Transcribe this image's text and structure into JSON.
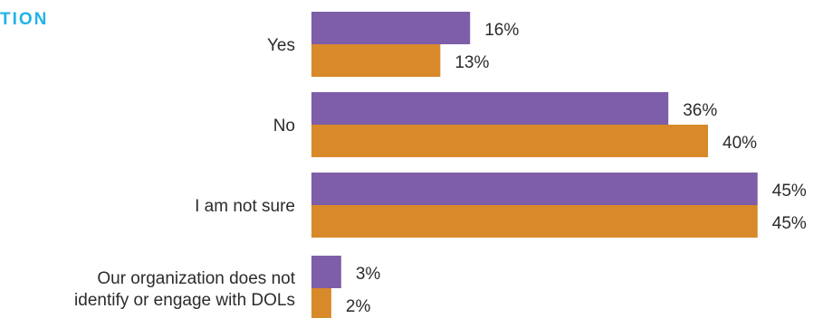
{
  "header": {
    "title_fragment": "TION"
  },
  "chart_data": {
    "type": "bar",
    "orientation": "horizontal",
    "categories": [
      [
        "Yes"
      ],
      [
        "No"
      ],
      [
        "I am not sure"
      ],
      [
        "Our organization does not",
        "identify or engage with DOLs"
      ]
    ],
    "series": [
      {
        "values": [
          16,
          36,
          45,
          3
        ],
        "labels": [
          "16%",
          "36%",
          "45%",
          "3%"
        ],
        "color": "#7e5ea9"
      },
      {
        "values": [
          13,
          40,
          45,
          2
        ],
        "labels": [
          "13%",
          "40%",
          "45%",
          "2%"
        ],
        "color": "#d8892a"
      }
    ],
    "value_unit": "%",
    "grid": false,
    "legend": "none"
  }
}
